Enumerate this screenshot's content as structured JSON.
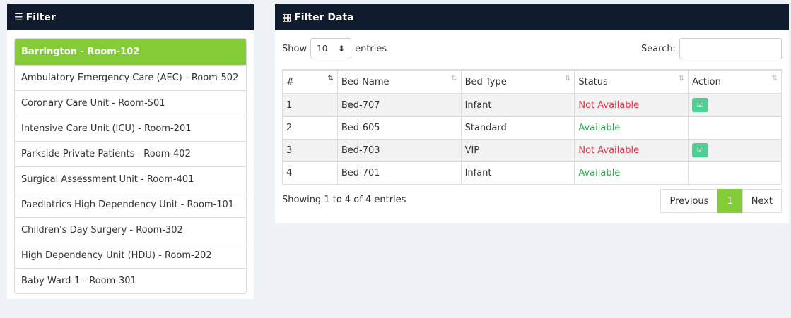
{
  "filter": {
    "title": "Filter",
    "icon": "sliders-icon",
    "items": [
      "Barrington - Room-102",
      "Ambulatory Emergency Care (AEC) - Room-502",
      "Coronary Care Unit - Room-501",
      "Intensive Care Unit (ICU) - Room-201",
      "Parkside Private Patients - Room-402",
      "Surgical Assessment Unit - Room-401",
      "Paediatrics High Dependency Unit - Room-101",
      "Children's Day Surgery - Room-302",
      "High Dependency Unit (HDU) - Room-202",
      "Baby Ward-1 - Room-301"
    ],
    "active_index": 0
  },
  "data": {
    "title": "Filter Data",
    "icon": "table-icon",
    "show_label": "Show",
    "entries_value": "10",
    "entries_label": "entries",
    "search_label": "Search:",
    "search_value": "",
    "columns": [
      "#",
      "Bed Name",
      "Bed Type",
      "Status",
      "Action"
    ],
    "rows": [
      {
        "n": "1",
        "name": "Bed-707",
        "type": "Infant",
        "status": "Not Available",
        "action": true
      },
      {
        "n": "2",
        "name": "Bed-605",
        "type": "Standard",
        "status": "Available",
        "action": false
      },
      {
        "n": "3",
        "name": "Bed-703",
        "type": "VIP",
        "status": "Not Available",
        "action": true
      },
      {
        "n": "4",
        "name": "Bed-701",
        "type": "Infant",
        "status": "Available",
        "action": false
      }
    ],
    "info": "Showing 1 to 4 of 4 entries",
    "prev": "Previous",
    "page": "1",
    "next": "Next"
  },
  "colors": {
    "header": "#101b2d",
    "accent": "#84cc37",
    "unavailable": "#dc3545",
    "available": "#28a745",
    "action": "#4bcf92"
  }
}
